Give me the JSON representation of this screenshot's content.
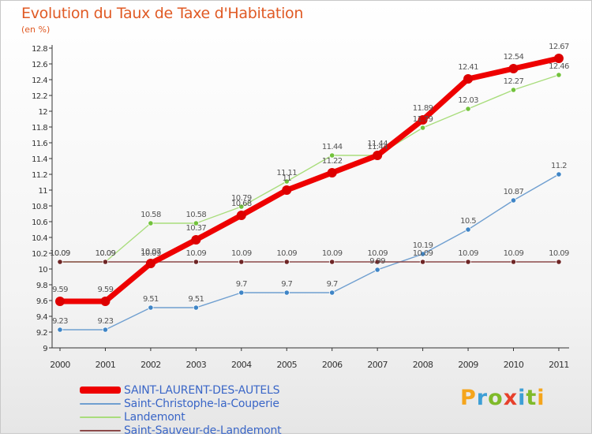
{
  "header": {
    "title": "Evolution du Taux de Taxe d'Habitation",
    "subtitle": "(en %)"
  },
  "logo": {
    "text": "Proxiti"
  },
  "chart_data": {
    "type": "line",
    "title": "Evolution du Taux de Taxe d'Habitation",
    "subtitle": "(en %)",
    "xlabel": "",
    "ylabel": "",
    "x": [
      "2000",
      "2001",
      "2002",
      "2003",
      "2004",
      "2005",
      "2006",
      "2007",
      "2008",
      "2009",
      "2010",
      "2011"
    ],
    "ylim": [
      9,
      12.8
    ],
    "yticks": [
      9,
      9.2,
      9.4,
      9.6,
      9.8,
      10,
      10.2,
      10.4,
      10.6,
      10.8,
      11,
      11.2,
      11.4,
      11.6,
      11.8,
      12,
      12.2,
      12.4,
      12.6,
      12.8
    ],
    "ytick_labels": [
      "9",
      "9.2",
      "9.4",
      "9.6",
      "9.8",
      "10",
      "10.2",
      "10.4",
      "10.6",
      "10.8",
      "11",
      "11.2",
      "11.4",
      "11.6",
      "11.8",
      "12",
      "12.2",
      "12.4",
      "12.6",
      "12.8"
    ],
    "grid": false,
    "legend_position": "bottom-left",
    "series": [
      {
        "name": "Saint-Christophe-la-Couperie",
        "color": "#6f9fd0",
        "marker": "#3f85c6",
        "values": [
          9.23,
          9.23,
          9.51,
          9.51,
          9.7,
          9.7,
          9.7,
          9.99,
          10.19,
          10.5,
          10.87,
          11.2
        ],
        "labels": [
          "9.23",
          "9.23",
          "9.51",
          "9.51",
          "9.7",
          "9.7",
          "9.7",
          "9.99",
          "10.19",
          "10.5",
          "10.87",
          "11.2"
        ]
      },
      {
        "name": "Landemont",
        "color": "#a9dd7c",
        "marker": "#72c23c",
        "values": [
          10.09,
          10.09,
          10.58,
          10.58,
          10.79,
          11.11,
          11.44,
          11.44,
          11.79,
          12.03,
          12.27,
          12.46
        ],
        "labels": [
          "10.09",
          "10.09",
          "10.58",
          "10.58",
          "10.79",
          "11.11",
          "11.44",
          "11.44",
          "11.79",
          "12.03",
          "12.27",
          "12.46"
        ]
      },
      {
        "name": "Saint-Sauveur-de-Landemont",
        "color": "#8c4a4a",
        "marker": "#6e2525",
        "values": [
          10.09,
          10.09,
          10.09,
          10.09,
          10.09,
          10.09,
          10.09,
          10.09,
          10.09,
          10.09,
          10.09,
          10.09
        ],
        "labels": [
          "10.09",
          "10.09",
          "10.09",
          "10.09",
          "10.09",
          "10.09",
          "10.09",
          "10.09",
          "10.09",
          "10.09",
          "10.09",
          "10.09"
        ]
      },
      {
        "name": "SAINT-LAURENT-DES-AUTELS",
        "color": "#ee0000",
        "marker": "#dd0000",
        "values": [
          9.59,
          9.59,
          10.07,
          10.37,
          10.68,
          11,
          11.22,
          11.44,
          11.89,
          12.41,
          12.54,
          12.67
        ],
        "labels": [
          "9.59",
          "9.59",
          "10.07",
          "10.37",
          "10.68",
          "11",
          "11.22",
          "11.44",
          "11.89",
          "12.41",
          "12.54",
          "12.67"
        ]
      }
    ],
    "legend": [
      "SAINT-LAURENT-DES-AUTELS",
      "Saint-Christophe-la-Couperie",
      "Landemont",
      "Saint-Sauveur-de-Landemont"
    ]
  }
}
